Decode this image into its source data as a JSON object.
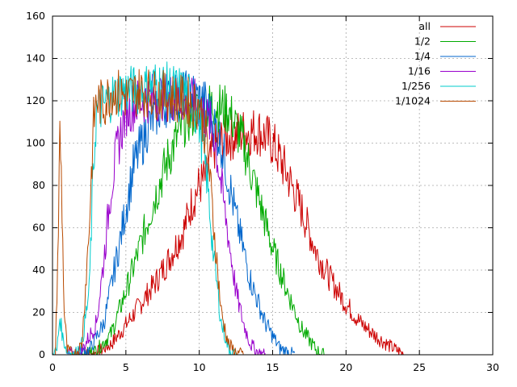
{
  "chart_data": {
    "type": "line",
    "title": "",
    "xlabel": "",
    "ylabel": "",
    "xlim": [
      0,
      30
    ],
    "ylim": [
      0,
      160
    ],
    "x_ticks": [
      0,
      5,
      10,
      15,
      20,
      25,
      30
    ],
    "y_ticks": [
      0,
      20,
      40,
      60,
      80,
      100,
      120,
      140,
      160
    ],
    "grid": true,
    "legend_position": "top-right",
    "series": [
      {
        "name": "all",
        "color": "#cc0000",
        "x": [
          2.0,
          3.0,
          4.0,
          5.0,
          6.0,
          7.0,
          8.0,
          9.0,
          9.5,
          10.0,
          10.5,
          11.0,
          12.0,
          13.0,
          14.0,
          15.0,
          16.0,
          17.0,
          18.0,
          19.0,
          20.0,
          21.0,
          22.0,
          23.0,
          24.0
        ],
        "y": [
          0,
          1,
          5,
          14,
          24,
          34,
          46,
          60,
          72,
          80,
          84,
          98,
          103,
          105,
          106,
          100,
          85,
          68,
          48,
          35,
          24,
          15,
          9,
          4,
          0
        ]
      },
      {
        "name": "1/2",
        "color": "#00aa00",
        "x": [
          2.0,
          3.0,
          4.0,
          5.0,
          6.0,
          7.0,
          8.0,
          9.0,
          10.0,
          11.0,
          12.0,
          13.0,
          14.0,
          15.0,
          16.0,
          17.0,
          18.0,
          18.5
        ],
        "y": [
          0,
          2,
          10,
          30,
          52,
          75,
          95,
          110,
          116,
          118,
          115,
          100,
          75,
          50,
          30,
          12,
          2,
          0
        ]
      },
      {
        "name": "1/4",
        "color": "#0066cc",
        "x": [
          1.5,
          2.5,
          3.5,
          4.5,
          5.5,
          6.5,
          7.5,
          8.5,
          9.5,
          10.5,
          11.5,
          12.5,
          13.5,
          14.5,
          15.5,
          16.5
        ],
        "y": [
          0,
          2,
          15,
          50,
          88,
          108,
          118,
          122,
          123,
          118,
          100,
          65,
          35,
          15,
          3,
          0
        ]
      },
      {
        "name": "1/16",
        "color": "#9900cc",
        "x": [
          1.0,
          2.0,
          3.0,
          3.5,
          4.0,
          4.5,
          5.0,
          6.0,
          7.0,
          8.0,
          9.0,
          10.0,
          11.0,
          11.5,
          12.0,
          12.5,
          13.0,
          13.5,
          14.0,
          14.5
        ],
        "y": [
          0,
          2,
          15,
          45,
          80,
          100,
          115,
          120,
          122,
          122,
          120,
          118,
          105,
          80,
          55,
          30,
          15,
          5,
          1,
          0
        ]
      },
      {
        "name": "1/256",
        "color": "#00cccc",
        "x": [
          0.0,
          0.3,
          0.5,
          0.7,
          1.0,
          1.5,
          2.0,
          2.5,
          2.8,
          3.0,
          3.5,
          4.0,
          5.0,
          6.0,
          7.0,
          8.0,
          9.0,
          9.5,
          10.0,
          10.5,
          11.0,
          11.5,
          12.0,
          12.5
        ],
        "y": [
          0,
          2,
          18,
          8,
          2,
          0,
          5,
          30,
          90,
          115,
          118,
          122,
          125,
          125,
          128,
          126,
          124,
          120,
          110,
          85,
          45,
          15,
          3,
          0
        ]
      },
      {
        "name": "1/1024",
        "color": "#b84a00",
        "x": [
          0.2,
          0.4,
          0.5,
          0.6,
          0.8,
          1.0,
          1.5,
          2.0,
          2.5,
          2.8,
          3.0,
          3.5,
          4.0,
          5.0,
          6.0,
          7.0,
          8.0,
          9.0,
          10.0,
          10.5,
          11.0,
          11.5,
          12.0,
          12.5,
          13.0
        ],
        "y": [
          0,
          60,
          105,
          85,
          20,
          2,
          0,
          5,
          60,
          110,
          120,
          118,
          125,
          122,
          125,
          123,
          122,
          120,
          118,
          102,
          60,
          20,
          5,
          1,
          0
        ]
      }
    ]
  }
}
